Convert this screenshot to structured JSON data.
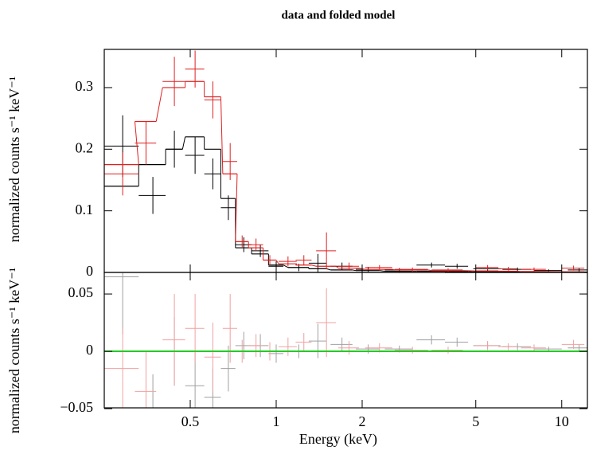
{
  "chart_data": [
    {
      "type": "errorbar",
      "title": "data and folded model",
      "ylabel": "normalized counts s⁻¹ keV⁻¹",
      "ylim": [
        0,
        0.362
      ],
      "yticks": [
        0,
        0.1,
        0.2,
        0.3
      ],
      "series": [
        {
          "color": "#000000",
          "x": [
            0.29,
            0.37,
            0.44,
            0.52,
            0.6,
            0.68,
            0.77,
            0.88,
            1.0,
            1.2,
            1.4,
            1.7,
            2.1,
            2.7,
            3.5,
            4.3,
            5.5,
            7.0,
            9.0,
            11.5
          ],
          "xerr": [
            0.04,
            0.04,
            0.03,
            0.04,
            0.04,
            0.04,
            0.05,
            0.06,
            0.06,
            0.1,
            0.1,
            0.15,
            0.2,
            0.3,
            0.4,
            0.4,
            0.6,
            0.8,
            1.0,
            1.0
          ],
          "values": [
            0.205,
            0.125,
            0.2,
            0.19,
            0.16,
            0.105,
            0.045,
            0.035,
            0.01,
            0.008,
            0.015,
            0.01,
            0.005,
            0.004,
            0.012,
            0.01,
            0.006,
            0.005,
            0.003,
            0.004
          ],
          "errors": [
            0.05,
            0.03,
            0.03,
            0.03,
            0.025,
            0.02,
            0.012,
            0.01,
            0.008,
            0.006,
            0.015,
            0.006,
            0.004,
            0.003,
            0.004,
            0.004,
            0.003,
            0.003,
            0.002,
            0.003
          ],
          "model": [
            0.14,
            0.175,
            0.2,
            0.22,
            0.2,
            0.12,
            0.04,
            0.03,
            0.012,
            0.008,
            0.006,
            0.004,
            0.003,
            0.002,
            0.002,
            0.0015,
            0.001,
            0.001,
            0.0008,
            0.0006
          ]
        },
        {
          "color": "#e02020",
          "x": [
            0.29,
            0.35,
            0.44,
            0.52,
            0.6,
            0.69,
            0.76,
            0.85,
            0.95,
            1.1,
            1.25,
            1.5,
            1.8,
            2.3,
            3.0,
            4.0,
            5.5,
            6.5,
            8.0,
            11.0
          ],
          "xerr": [
            0.04,
            0.03,
            0.04,
            0.04,
            0.04,
            0.04,
            0.04,
            0.05,
            0.05,
            0.08,
            0.08,
            0.12,
            0.15,
            0.25,
            0.4,
            0.5,
            0.5,
            0.5,
            0.8,
            1.0
          ],
          "values": [
            0.16,
            0.21,
            0.31,
            0.33,
            0.28,
            0.18,
            0.05,
            0.045,
            0.02,
            0.018,
            0.02,
            0.035,
            0.01,
            0.008,
            0.005,
            0.004,
            0.008,
            0.006,
            0.005,
            0.007
          ],
          "errors": [
            0.035,
            0.035,
            0.04,
            0.03,
            0.03,
            0.03,
            0.01,
            0.01,
            0.008,
            0.008,
            0.008,
            0.03,
            0.006,
            0.004,
            0.003,
            0.003,
            0.004,
            0.003,
            0.003,
            0.004
          ],
          "model": [
            0.175,
            0.245,
            0.3,
            0.31,
            0.285,
            0.16,
            0.05,
            0.04,
            0.02,
            0.014,
            0.012,
            0.01,
            0.007,
            0.005,
            0.004,
            0.003,
            0.0025,
            0.002,
            0.0015,
            0.001
          ]
        }
      ]
    },
    {
      "type": "errorbar",
      "ylabel": "normalized counts s⁻¹ keV⁻¹",
      "xlabel": "Energy (keV)",
      "xlim": [
        0.25,
        12.3
      ],
      "xticks": [
        0.5,
        1,
        2,
        5,
        10
      ],
      "log_x": true,
      "ylim": [
        -0.0493,
        0.0688
      ],
      "yticks": [
        {
          "value": -0.05,
          "label": "−0.05"
        },
        0,
        0.05
      ],
      "reference_line": {
        "value": 0,
        "color": "#22cc22"
      },
      "series": [
        {
          "color": "#a0a0a0",
          "x": [
            0.29,
            0.37,
            0.44,
            0.52,
            0.6,
            0.68,
            0.77,
            0.88,
            1.0,
            1.2,
            1.4,
            1.7,
            2.1,
            2.7,
            3.5,
            4.3,
            5.5,
            7.0,
            9.0,
            11.5
          ],
          "xerr": [
            0.04,
            0.04,
            0.03,
            0.04,
            0.04,
            0.04,
            0.05,
            0.06,
            0.06,
            0.1,
            0.1,
            0.15,
            0.2,
            0.3,
            0.4,
            0.4,
            0.6,
            0.8,
            1.0,
            1.0
          ],
          "values": [
            0.065,
            -0.05,
            0,
            -0.03,
            -0.04,
            -0.015,
            0.005,
            0.005,
            -0.002,
            0,
            0.009,
            0.006,
            0.002,
            0.002,
            0.01,
            0.008,
            0.005,
            0.004,
            0.002,
            0.003
          ],
          "errors": [
            0.05,
            0.03,
            0.03,
            0.03,
            0.025,
            0.02,
            0.012,
            0.01,
            0.008,
            0.006,
            0.015,
            0.006,
            0.004,
            0.003,
            0.004,
            0.004,
            0.003,
            0.003,
            0.002,
            0.003
          ]
        },
        {
          "color": "#f0a0a0",
          "x": [
            0.29,
            0.35,
            0.44,
            0.52,
            0.6,
            0.69,
            0.76,
            0.85,
            0.95,
            1.1,
            1.25,
            1.5,
            1.8,
            2.3,
            3.0,
            4.0,
            5.5,
            6.5,
            8.0,
            11.0
          ],
          "xerr": [
            0.04,
            0.03,
            0.04,
            0.04,
            0.04,
            0.04,
            0.04,
            0.05,
            0.05,
            0.08,
            0.08,
            0.12,
            0.15,
            0.25,
            0.4,
            0.5,
            0.5,
            0.5,
            0.8,
            1.0
          ],
          "values": [
            -0.015,
            -0.035,
            0.01,
            0.02,
            -0.005,
            0.02,
            0,
            0.005,
            0,
            0.004,
            0.008,
            0.025,
            0.003,
            0.003,
            0.001,
            0.001,
            0.005,
            0.004,
            0.003,
            0.006
          ],
          "errors": [
            0.035,
            0.035,
            0.04,
            0.03,
            0.03,
            0.03,
            0.01,
            0.01,
            0.008,
            0.008,
            0.008,
            0.03,
            0.006,
            0.004,
            0.003,
            0.003,
            0.004,
            0.003,
            0.003,
            0.004
          ]
        }
      ]
    }
  ]
}
